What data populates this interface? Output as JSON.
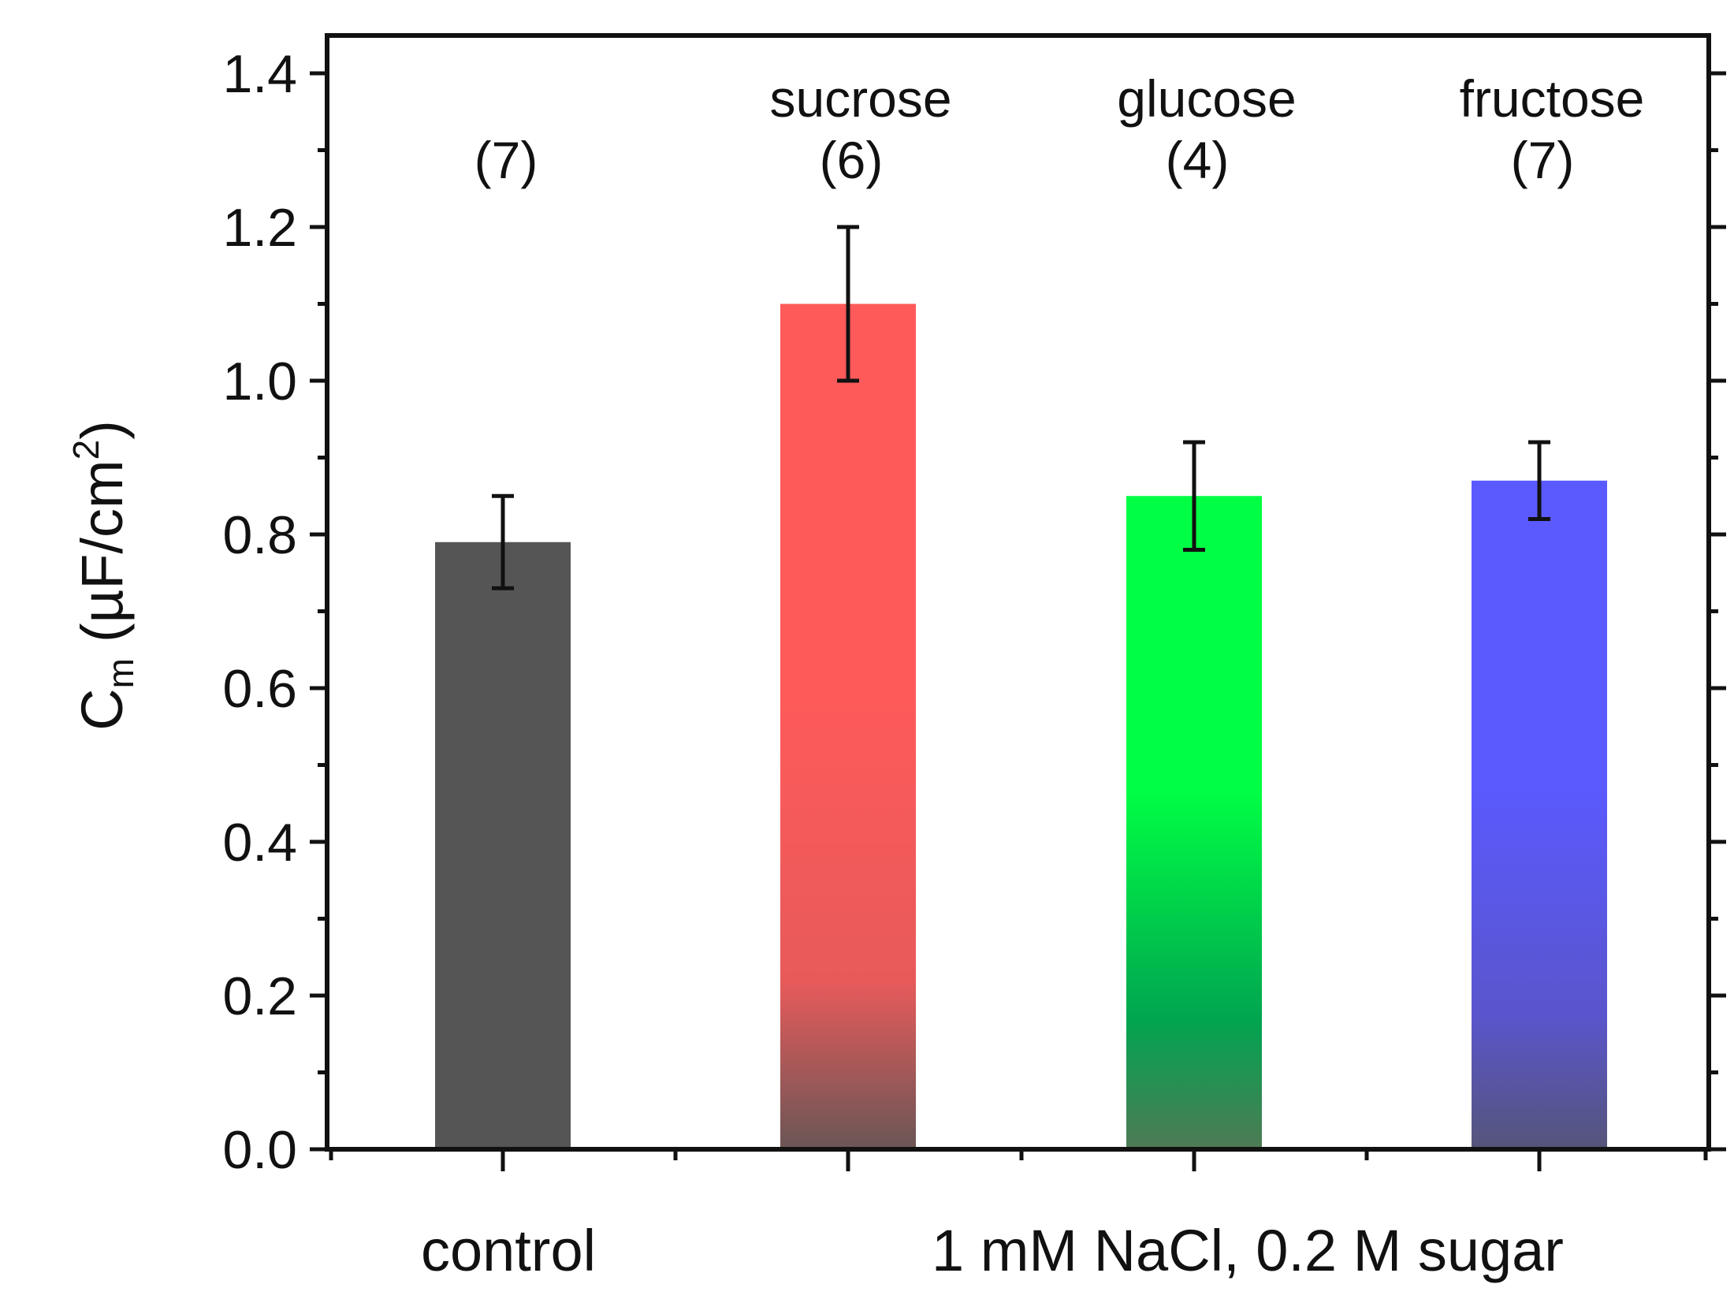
{
  "chart_data": {
    "type": "bar",
    "title": "",
    "xlabel": "",
    "ylabel": {
      "main": "C",
      "sub": "m",
      "unit_open": "(µF/cm",
      "sup": "2",
      "unit_close": ")"
    },
    "ylim": [
      0.0,
      1.4
    ],
    "yticks": [
      "0.0",
      "0.2",
      "0.4",
      "0.6",
      "0.8",
      "1.0",
      "1.2",
      "1.4"
    ],
    "ytick_values": [
      0.0,
      0.2,
      0.4,
      0.6,
      0.8,
      1.0,
      1.2,
      1.4
    ],
    "categories": [
      "control",
      "sucrose",
      "glucose",
      "fructose"
    ],
    "values": [
      0.79,
      1.1,
      0.85,
      0.87
    ],
    "errors": [
      0.06,
      0.1,
      0.07,
      0.05
    ],
    "sample_counts": [
      "(7)",
      "(6)",
      "(4)",
      "(7)"
    ],
    "bar_name_labels": [
      "",
      "sucrose",
      "glucose",
      "fructose"
    ],
    "x_group_labels": [
      "control",
      "1 mM NaCl, 0.2 M sugar"
    ],
    "bar_colors": [
      {
        "top": "#555555",
        "mid": "#555555",
        "bottom": "#555555"
      },
      {
        "top": "#ff5a5a",
        "mid": "#e85a5a",
        "bottom": "#6a5656"
      },
      {
        "top": "#00ff44",
        "mid": "#00a550",
        "bottom": "#4f7a55"
      },
      {
        "top": "#5a5aff",
        "mid": "#5a55cc",
        "bottom": "#55557a"
      }
    ],
    "grid": false
  }
}
